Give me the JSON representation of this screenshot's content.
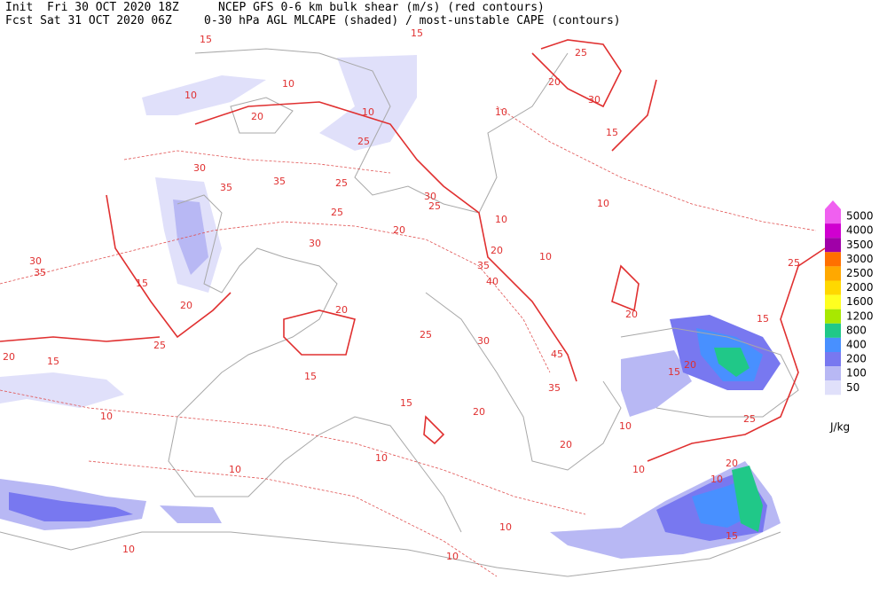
{
  "header": {
    "init": "Init  Fri 30 OCT 2020 18Z",
    "title1": "NCEP GFS 0-6 km bulk shear (m/s) (red contours)",
    "fcst": "Fcst Sat 31 OCT 2020 06Z",
    "title2": "0-30 hPa AGL MLCAPE (shaded) / most-unstable CAPE (contours)"
  },
  "legend": {
    "items": [
      {
        "label": "5000",
        "color": "#f060f0"
      },
      {
        "label": "4000",
        "color": "#d000d0"
      },
      {
        "label": "3500",
        "color": "#a000a8"
      },
      {
        "label": "3000",
        "color": "#ff7000"
      },
      {
        "label": "2500",
        "color": "#ffa800"
      },
      {
        "label": "2000",
        "color": "#ffd800"
      },
      {
        "label": "1600",
        "color": "#ffff20"
      },
      {
        "label": "1200",
        "color": "#a8e800"
      },
      {
        "label": "800",
        "color": "#20c888"
      },
      {
        "label": "400",
        "color": "#4890ff"
      },
      {
        "label": "200",
        "color": "#7878f0"
      },
      {
        "label": "100",
        "color": "#b8b8f4"
      },
      {
        "label": "50",
        "color": "#e0e0fa"
      }
    ],
    "unit": "J/kg"
  },
  "contour_labels": [
    15,
    15,
    25,
    20,
    30,
    15,
    10,
    10,
    10,
    20,
    25,
    30,
    35,
    35,
    25,
    30,
    25,
    10,
    10,
    10,
    20,
    35,
    40,
    10,
    25,
    30,
    20,
    20,
    30,
    35,
    15,
    20,
    25,
    20,
    15,
    10,
    15,
    25,
    30,
    45,
    35,
    20,
    15,
    20,
    15,
    20,
    25,
    15,
    25,
    20,
    10,
    15,
    10,
    10,
    10,
    10,
    10,
    10,
    20,
    10
  ]
}
